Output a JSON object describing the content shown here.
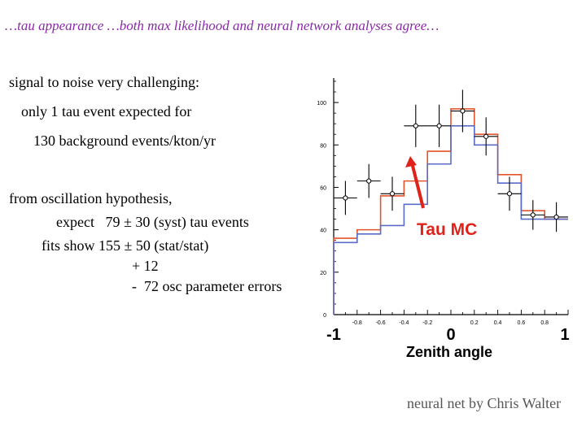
{
  "header": {
    "title": "…tau appearance …both max likelihood and neural network analyses agree…"
  },
  "body_text": {
    "line1": "signal to noise very challenging:",
    "line2": "only 1 tau event expected for",
    "line3": "130 background events/kton/yr",
    "line4": "from oscillation hypothesis,",
    "line5": "expect   79 ± 30 (syst) tau events",
    "line6": "fits show 155 ± 50 (stat/stat)",
    "line7": "+ 12",
    "line8": "-  72 osc parameter errors"
  },
  "credit": "neural net by Chris Walter",
  "chart_data": {
    "type": "line",
    "xlabel": "Zenith angle",
    "ylabel": "",
    "xlim": [
      -1,
      1
    ],
    "ylim": [
      0,
      110
    ],
    "yticks": [
      0,
      20,
      40,
      60,
      80,
      100
    ],
    "xticks_small": [
      "-0.8",
      "-0.6",
      "-0.4",
      "-0.2",
      "0.2",
      "0.4",
      "0.6",
      "0.8"
    ],
    "xticks_small_values": [
      -0.8,
      -0.6,
      -0.4,
      -0.2,
      0.2,
      0.4,
      0.6,
      0.8
    ],
    "xticks_large": [
      "-1",
      "0",
      "1"
    ],
    "xticks_large_values": [
      -1,
      0,
      1
    ],
    "bin_edges": [
      -1,
      -0.9,
      -0.8,
      -0.7,
      -0.6,
      -0.5,
      -0.4,
      -0.3,
      -0.2,
      -0.1,
      0,
      0.1,
      0.2,
      0.3,
      0.4,
      0.5,
      0.6,
      0.7,
      0.8,
      0.9,
      1
    ],
    "series": [
      {
        "values": [
          36,
          36,
          40,
          40,
          56,
          56,
          63,
          63,
          77,
          77,
          97,
          97,
          85,
          85,
          66,
          66,
          49,
          49,
          45,
          45
        ],
        "color": "#e2542c"
      },
      {
        "values": [
          34,
          34,
          38,
          38,
          42,
          42,
          52,
          52,
          71,
          71,
          89,
          89,
          80,
          80,
          62,
          62,
          45,
          45,
          45,
          45
        ],
        "color": "#5b6cc8"
      }
    ],
    "data_points": {
      "x": [
        -0.9,
        -0.7,
        -0.5,
        -0.3,
        -0.1,
        0.1,
        0.3,
        0.5,
        0.7,
        0.9
      ],
      "y": [
        55,
        63,
        57,
        89,
        89,
        96,
        84,
        57,
        47,
        46
      ],
      "err_low": [
        8,
        8,
        8,
        10,
        10,
        10,
        9,
        8,
        7,
        7
      ],
      "err_high": [
        8,
        8,
        8,
        10,
        10,
        10,
        9,
        8,
        7,
        7
      ]
    },
    "annotation": {
      "text": "Tau MC",
      "color": "#e0231a"
    }
  }
}
